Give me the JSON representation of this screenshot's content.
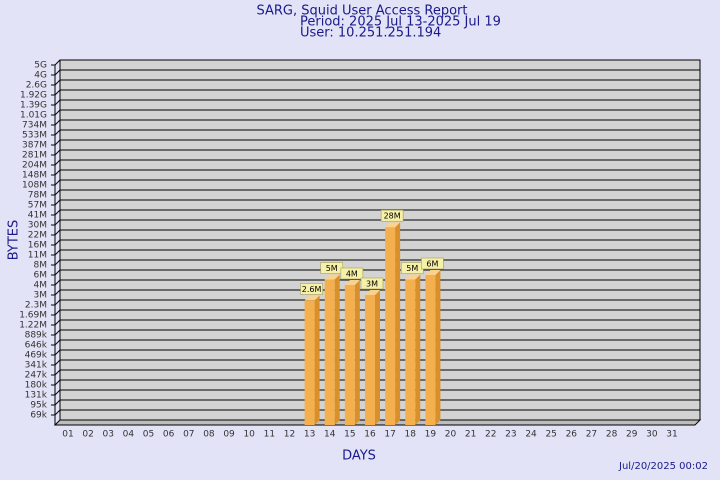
{
  "chart_data": {
    "type": "bar",
    "title": "SARG, Squid User Access Report",
    "subtitle": "Period: 2025 Jul 13-2025 Jul 19",
    "user": "User: 10.251.251.194",
    "xlabel": "DAYS",
    "ylabel": "BYTES",
    "footer": "Jul/20/2025 00:02",
    "categories": [
      "01",
      "02",
      "03",
      "04",
      "05",
      "06",
      "07",
      "08",
      "09",
      "10",
      "11",
      "12",
      "13",
      "14",
      "15",
      "16",
      "17",
      "18",
      "19",
      "20",
      "21",
      "22",
      "23",
      "24",
      "25",
      "26",
      "27",
      "28",
      "29",
      "30",
      "31"
    ],
    "values": [
      null,
      null,
      null,
      null,
      null,
      null,
      null,
      null,
      null,
      null,
      null,
      null,
      2600000,
      5000000,
      4000000,
      3000000,
      28000000,
      5000000,
      6000000,
      null,
      null,
      null,
      null,
      null,
      null,
      null,
      null,
      null,
      null,
      null,
      null
    ],
    "value_labels": [
      null,
      null,
      null,
      null,
      null,
      null,
      null,
      null,
      null,
      null,
      null,
      null,
      "2.6M",
      "5M",
      "4M",
      "3M",
      "28M",
      "5M",
      "6M",
      null,
      null,
      null,
      null,
      null,
      null,
      null,
      null,
      null,
      null,
      null,
      null
    ],
    "color": "#f4b04f",
    "ylim": [
      50000,
      5000000000
    ],
    "yticks": [
      {
        "value": 69000,
        "label": "69k"
      },
      {
        "value": 95000,
        "label": "95k"
      },
      {
        "value": 131000,
        "label": "131k"
      },
      {
        "value": 180000,
        "label": "180k"
      },
      {
        "value": 247000,
        "label": "247k"
      },
      {
        "value": 341000,
        "label": "341k"
      },
      {
        "value": 469000,
        "label": "469k"
      },
      {
        "value": 646000,
        "label": "646k"
      },
      {
        "value": 889000,
        "label": "889k"
      },
      {
        "value": 1220000,
        "label": "1.22M"
      },
      {
        "value": 1690000,
        "label": "1.69M"
      },
      {
        "value": 2300000,
        "label": "2.3M"
      },
      {
        "value": 3000000,
        "label": "3M"
      },
      {
        "value": 4000000,
        "label": "4M"
      },
      {
        "value": 6000000,
        "label": "6M"
      },
      {
        "value": 8000000,
        "label": "8M"
      },
      {
        "value": 11000000,
        "label": "11M"
      },
      {
        "value": 16000000,
        "label": "16M"
      },
      {
        "value": 22000000,
        "label": "22M"
      },
      {
        "value": 30000000,
        "label": "30M"
      },
      {
        "value": 41000000,
        "label": "41M"
      },
      {
        "value": 57000000,
        "label": "57M"
      },
      {
        "value": 78000000,
        "label": "78M"
      },
      {
        "value": 108000000,
        "label": "108M"
      },
      {
        "value": 148000000,
        "label": "148M"
      },
      {
        "value": 204000000,
        "label": "204M"
      },
      {
        "value": 281000000,
        "label": "281M"
      },
      {
        "value": 387000000,
        "label": "387M"
      },
      {
        "value": 533000000,
        "label": "533M"
      },
      {
        "value": 734000000,
        "label": "734M"
      },
      {
        "value": 1010000000,
        "label": "1.01G"
      },
      {
        "value": 1390000000,
        "label": "1.39G"
      },
      {
        "value": 1920000000,
        "label": "1.92G"
      },
      {
        "value": 2600000000,
        "label": "2.6G"
      },
      {
        "value": 4000000000,
        "label": "4G"
      },
      {
        "value": 5000000000,
        "label": "5G"
      }
    ],
    "grid": true
  }
}
